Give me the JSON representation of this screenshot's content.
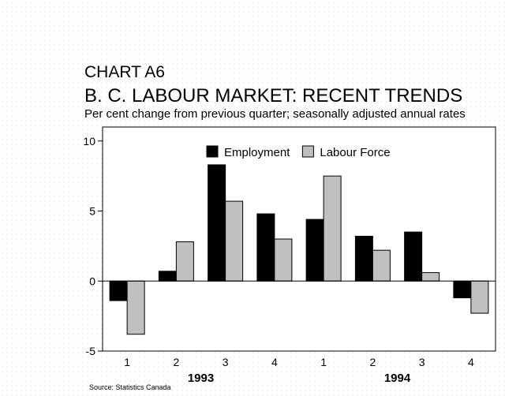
{
  "header": {
    "chart_label": "CHART A6",
    "title": "B. C. LABOUR MARKET: RECENT TRENDS",
    "subtitle": "Per cent change from previous quarter; seasonally adjusted annual rates"
  },
  "footer": {
    "source": "Source: Statistics Canada"
  },
  "chart_data": {
    "type": "bar",
    "title": "B. C. LABOUR MARKET: RECENT TRENDS",
    "subtitle": "Per cent change from previous quarter; seasonally adjusted annual rates",
    "categories": [
      "1",
      "2",
      "3",
      "4",
      "1",
      "2",
      "3",
      "4"
    ],
    "groups": [
      {
        "label": "1993",
        "start": 0,
        "end": 3
      },
      {
        "label": "1994",
        "start": 4,
        "end": 7
      }
    ],
    "series": [
      {
        "name": "Employment",
        "color": "#000000",
        "values": [
          -1.4,
          0.7,
          8.3,
          4.8,
          4.4,
          3.2,
          3.5,
          -1.2
        ]
      },
      {
        "name": "Labour Force",
        "color": "#c0c0c0",
        "values": [
          -3.8,
          2.8,
          5.7,
          3.0,
          7.5,
          2.2,
          0.6,
          -2.3
        ]
      }
    ],
    "ylim": [
      -5,
      11
    ],
    "yticks": [
      -5,
      0,
      5,
      10
    ],
    "legend_position": "top-center",
    "grid": false
  }
}
